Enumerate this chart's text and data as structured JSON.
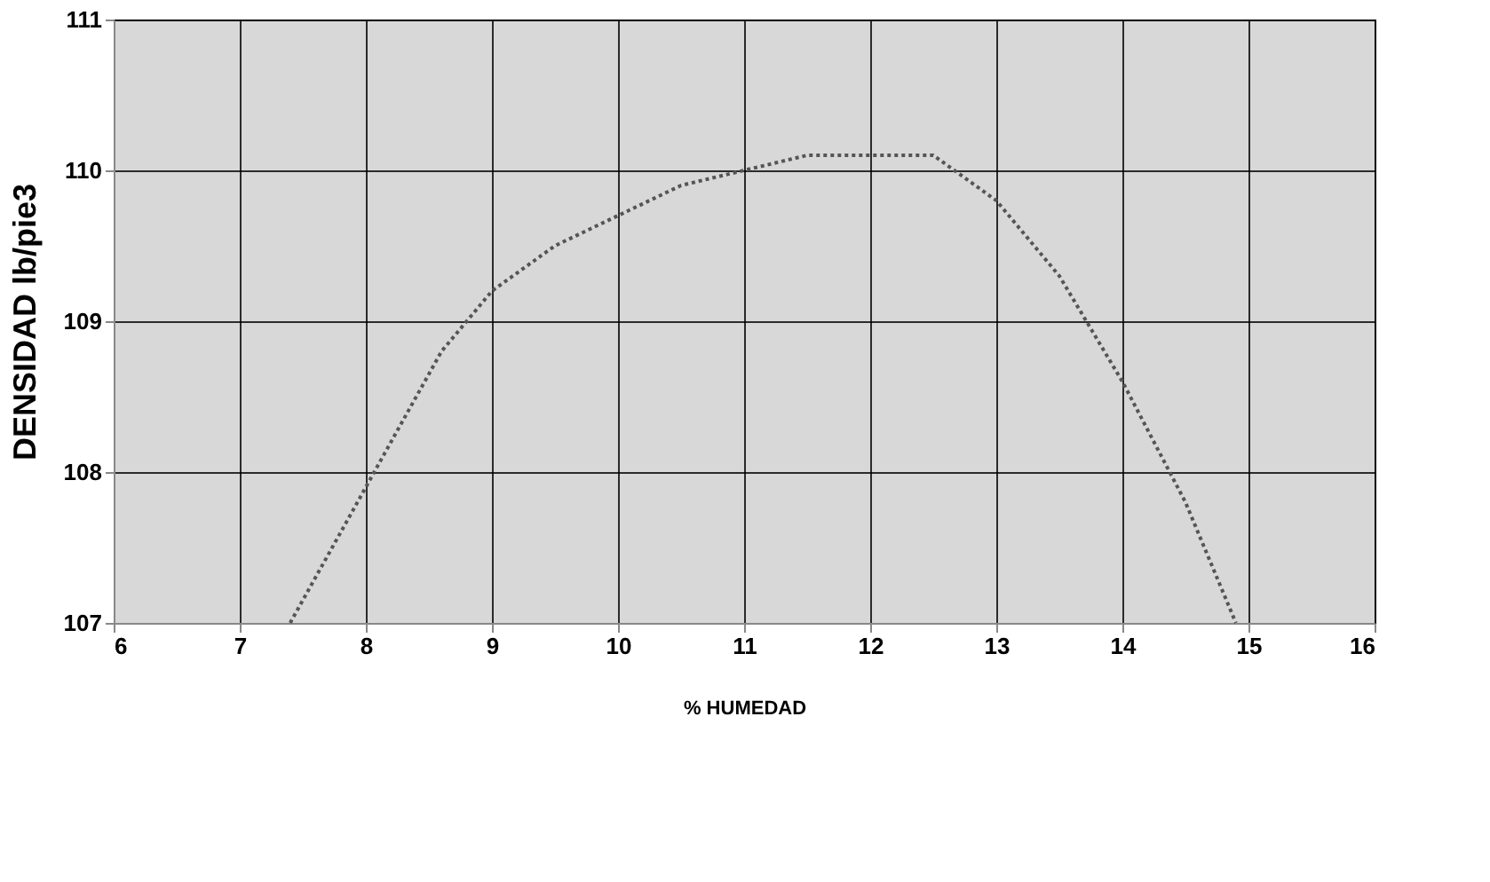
{
  "chart_data": {
    "type": "line",
    "xlabel": "% HUMEDAD",
    "ylabel": "DENSIDAD lb/pie3",
    "x": [
      7.4,
      7.8,
      8.2,
      8.6,
      9.0,
      9.5,
      10.0,
      10.5,
      11.0,
      11.5,
      12.0,
      12.5,
      13.0,
      13.5,
      14.0,
      14.5,
      14.9
    ],
    "series": [
      {
        "color": "#555555",
        "values": [
          107.0,
          107.6,
          108.2,
          108.8,
          109.2,
          109.5,
          109.7,
          109.9,
          110.0,
          110.1,
          110.1,
          110.1,
          109.8,
          109.3,
          108.6,
          107.8,
          107.0
        ]
      }
    ],
    "xlim": [
      6,
      16
    ],
    "xticks": [
      6,
      7,
      8,
      9,
      10,
      11,
      12,
      13,
      14,
      15,
      16
    ],
    "ylim": [
      107,
      111
    ],
    "yticks": [
      107,
      108,
      109,
      110,
      111
    ],
    "grid": true,
    "marker": "none",
    "line_style": "dotted"
  }
}
